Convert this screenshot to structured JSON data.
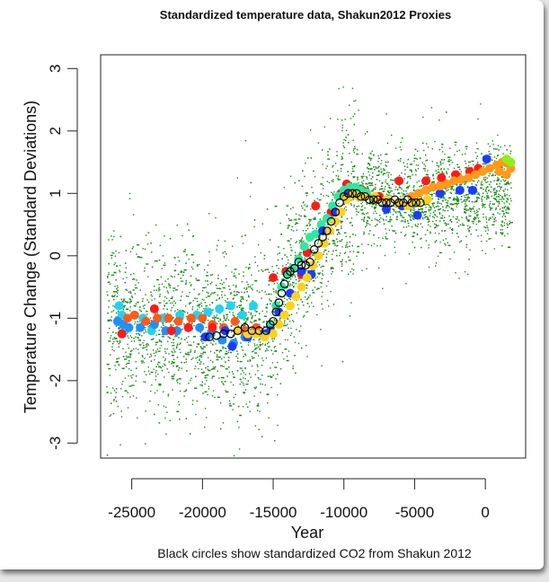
{
  "chart_data": {
    "type": "scatter",
    "title": "Standardized temperature data, Shakun2012 Proxies",
    "xlabel": "Year",
    "ylabel": "Temperature Change (Standard Deviations)",
    "caption": "Black circles show standardized CO2 from Shakun 2012",
    "xlim": [
      -27200,
      2850
    ],
    "ylim": [
      -3.24,
      3.22
    ],
    "xticks": [
      -25000,
      -20000,
      -15000,
      -10000,
      -5000,
      0
    ],
    "xtick_labels": [
      "-25000",
      "-20000",
      "-15000",
      "-10000",
      "-5000",
      "0"
    ],
    "yticks": [
      -3,
      -2,
      -1,
      0,
      1,
      2,
      3
    ],
    "ytick_labels": [
      "-3",
      "-2",
      "-1",
      "0",
      "1",
      "2",
      "3"
    ],
    "grid": false,
    "legend": "none",
    "proxy_cloud": {
      "color": "#1a8a1a",
      "mean_curve": {
        "x": [
          -27000,
          -22000,
          -18000,
          -16000,
          -15000,
          -14300,
          -13500,
          -12800,
          -12000,
          -11200,
          -10300,
          -9500,
          -8000,
          -6000,
          -4500,
          -2000,
          0,
          1800
        ],
        "y": [
          -1.0,
          -1.1,
          -1.2,
          -1.2,
          -1.1,
          -0.6,
          -0.15,
          0.1,
          0.1,
          0.45,
          0.85,
          1.0,
          0.95,
          0.9,
          0.9,
          0.95,
          1.0,
          1.0
        ]
      },
      "spread_sd": 0.6
    },
    "series": [
      {
        "color": "#22d3ee",
        "x": [
          -25900,
          -25500,
          -24200,
          -22800,
          -21600,
          -20400,
          -19600,
          -18800,
          -18000,
          -17200,
          -16400,
          -25700,
          -23600
        ],
        "y": [
          -0.8,
          -1.2,
          -1.0,
          -1.0,
          -0.95,
          -0.95,
          -0.9,
          -0.85,
          -0.8,
          -0.95,
          -0.8,
          -0.95,
          -1.2
        ]
      },
      {
        "color": "#1e90ff",
        "x": [
          -26000,
          -25600,
          -25200,
          -24400,
          -23400,
          -22600,
          -21800,
          -21000,
          -20200,
          -19400,
          -18600,
          -17800,
          -17000
        ],
        "y": [
          -1.05,
          -1.1,
          -1.15,
          -1.15,
          -1.1,
          -1.2,
          -1.2,
          -1.15,
          -1.15,
          -1.25,
          -1.35,
          -1.4,
          -1.3
        ]
      },
      {
        "color": "#ff5a1e",
        "x": [
          -25300,
          -24800,
          -24000,
          -23200,
          -22400,
          -21700,
          -20800,
          -20000,
          -19300,
          -18500,
          -17700,
          -17000,
          -16200
        ],
        "y": [
          -1.0,
          -0.95,
          -1.05,
          -1.0,
          -1.0,
          -1.05,
          -1.0,
          -1.0,
          -1.1,
          -1.15,
          -1.05,
          -1.2,
          -1.15
        ]
      },
      {
        "color": "#ff1a1a",
        "x": [
          -25700,
          -23400,
          -22200,
          -21000,
          -19300,
          -15000,
          -14100,
          -13000,
          -12600,
          -12000,
          -10900,
          -10200,
          -9800,
          -8700,
          -7500,
          -6100,
          -4200,
          -3100,
          -2100,
          -1100,
          -500,
          900
        ],
        "y": [
          -1.25,
          -0.85,
          -1.2,
          -1.15,
          -1.15,
          -0.35,
          -0.25,
          -0.3,
          0.05,
          0.8,
          0.7,
          1.0,
          1.15,
          1.05,
          0.95,
          1.2,
          1.2,
          1.25,
          1.3,
          1.35,
          1.4,
          1.45
        ]
      },
      {
        "color": "#2ee8a0",
        "x": [
          -15200,
          -14800,
          -14400,
          -14000,
          -13600,
          -13200,
          -12800,
          -12400,
          -12000,
          -11600,
          -11200,
          -10800,
          -10400,
          -10000,
          -9600,
          -9200,
          -8800,
          -8400
        ],
        "y": [
          -1.1,
          -0.8,
          -0.5,
          -0.3,
          -0.2,
          -0.05,
          0.15,
          0.3,
          0.35,
          0.5,
          0.6,
          0.8,
          0.95,
          1.05,
          1.1,
          1.1,
          1.05,
          1.0
        ]
      },
      {
        "color": "#1a3cff",
        "x": [
          -19800,
          -18400,
          -17900,
          -16800,
          -15700,
          -15200,
          -14600,
          -13800,
          -13000,
          -12300,
          -11500,
          -10600,
          -9700,
          -8600,
          -7000,
          -5900,
          -4800,
          -3200,
          -1800,
          -900,
          100
        ],
        "y": [
          -1.3,
          -1.2,
          -1.45,
          -1.3,
          -1.25,
          -1.2,
          -0.9,
          -0.6,
          -0.25,
          -0.3,
          0.4,
          0.7,
          1.0,
          0.95,
          0.75,
          0.8,
          0.65,
          1.0,
          1.05,
          1.05,
          1.55
        ]
      },
      {
        "color": "#ffd21a",
        "x": [
          -17500,
          -16800,
          -16200,
          -15600,
          -15000,
          -14600,
          -14200,
          -13800,
          -13400,
          -13000,
          -12600,
          -12200,
          -11800,
          -11400,
          -11000,
          -10600,
          -10200,
          -9800,
          -9400,
          -9000,
          -8500,
          -7800,
          -7000,
          -6200,
          -5500,
          -4800,
          -4100
        ],
        "y": [
          -1.2,
          -1.25,
          -1.25,
          -1.3,
          -1.25,
          -1.1,
          -0.95,
          -0.8,
          -0.65,
          -0.5,
          -0.35,
          -0.15,
          0.0,
          0.2,
          0.4,
          0.55,
          0.7,
          0.9,
          1.0,
          0.95,
          0.95,
          0.95,
          0.9,
          0.85,
          0.8,
          0.85,
          0.9
        ]
      },
      {
        "color": "#ff9a1a",
        "x": [
          -5200,
          -4700,
          -4200,
          -3700,
          -3200,
          -2700,
          -2200,
          -1700,
          -1200,
          -700,
          -200,
          300,
          800,
          1200,
          1600,
          1800,
          1500,
          1000
        ],
        "y": [
          0.95,
          1.0,
          1.05,
          1.1,
          1.12,
          1.15,
          1.2,
          1.22,
          1.25,
          1.3,
          1.35,
          1.4,
          1.45,
          1.5,
          1.5,
          1.4,
          1.3,
          1.35
        ]
      },
      {
        "color": "#8ef01a",
        "x": [
          1500,
          1800
        ],
        "y": [
          1.55,
          1.5
        ]
      }
    ],
    "co2_circles": {
      "color": "#000000",
      "x": [
        -19500,
        -19000,
        -18500,
        -18000,
        -17500,
        -17000,
        -16500,
        -16000,
        -15500,
        -15200,
        -15000,
        -14800,
        -14600,
        -14400,
        -14200,
        -14000,
        -13800,
        -13500,
        -13200,
        -13000,
        -12700,
        -12400,
        -12100,
        -11800,
        -11500,
        -11200,
        -10900,
        -10600,
        -10300,
        -10000,
        -9700,
        -9400,
        -9100,
        -8800,
        -8500,
        -8200,
        -7900,
        -7600,
        -7300,
        -7000,
        -6700,
        -6400,
        -6100,
        -5800,
        -5500,
        -5200,
        -4900,
        -4600
      ],
      "y": [
        -1.3,
        -1.28,
        -1.25,
        -1.25,
        -1.2,
        -1.15,
        -1.2,
        -1.2,
        -1.2,
        -1.1,
        -1.05,
        -0.9,
        -0.75,
        -0.6,
        -0.45,
        -0.3,
        -0.25,
        -0.2,
        -0.1,
        -0.15,
        -0.15,
        -0.1,
        0.1,
        0.2,
        0.3,
        0.4,
        0.55,
        0.7,
        0.85,
        0.95,
        1.0,
        1.0,
        1.0,
        0.95,
        0.95,
        0.9,
        0.9,
        0.9,
        0.85,
        0.85,
        0.85,
        0.9,
        0.85,
        0.85,
        0.9,
        0.85,
        0.85,
        0.85
      ]
    }
  }
}
